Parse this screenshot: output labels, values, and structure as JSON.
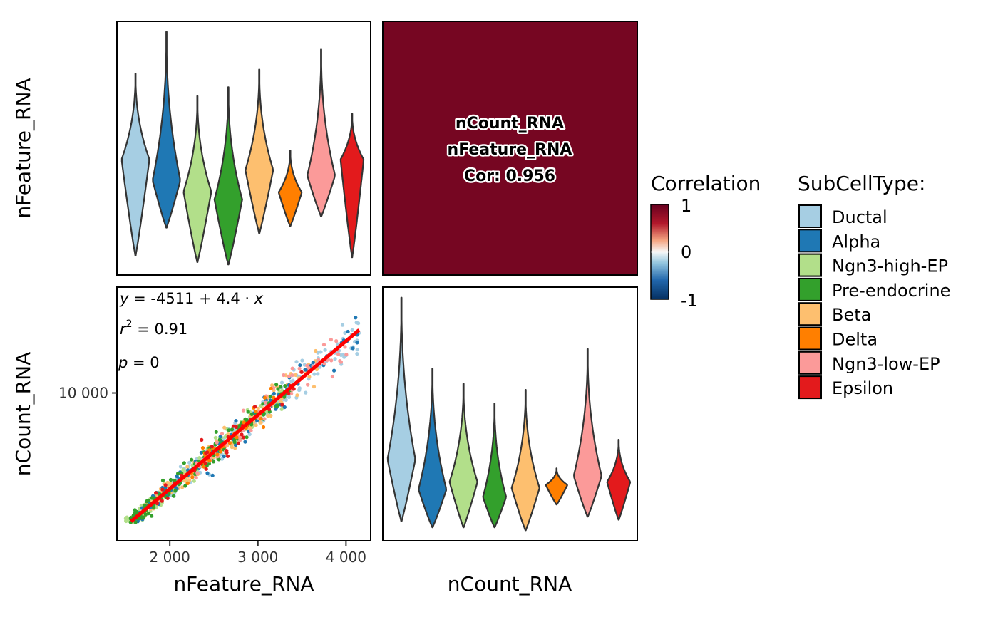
{
  "chart_data": {
    "type": "pairs-matrix",
    "variables": [
      "nFeature_RNA",
      "nCount_RNA"
    ],
    "groups": [
      "Ductal",
      "Alpha",
      "Ngn3-high-EP",
      "Pre-endocrine",
      "Beta",
      "Delta",
      "Ngn3-low-EP",
      "Epsilon"
    ],
    "colors": {
      "Ductal": "#A6CEE3",
      "Alpha": "#1F78B4",
      "Ngn3-high-EP": "#B2DF8A",
      "Pre-endocrine": "#33A02C",
      "Beta": "#FDBF6F",
      "Delta": "#FF7F00",
      "Ngn3-low-EP": "#FB9A99",
      "Epsilon": "#E31A1C"
    },
    "violin_nFeature": [
      {
        "group": "Ductal",
        "min": 1680,
        "max": 3950,
        "mode": 2880,
        "width": 0.9
      },
      {
        "group": "Alpha",
        "min": 2030,
        "max": 4470,
        "mode": 2620,
        "width": 0.9
      },
      {
        "group": "Ngn3-high-EP",
        "min": 1600,
        "max": 3670,
        "mode": 2480,
        "width": 0.9
      },
      {
        "group": "Pre-endocrine",
        "min": 1570,
        "max": 3780,
        "mode": 2380,
        "width": 0.9
      },
      {
        "group": "Beta",
        "min": 1960,
        "max": 4000,
        "mode": 2750,
        "width": 0.9
      },
      {
        "group": "Delta",
        "min": 2050,
        "max": 2990,
        "mode": 2470,
        "width": 0.75
      },
      {
        "group": "Ngn3-low-EP",
        "min": 2170,
        "max": 4250,
        "mode": 2680,
        "width": 0.9
      },
      {
        "group": "Epsilon",
        "min": 1660,
        "max": 3450,
        "mode": 2880,
        "width": 0.75
      }
    ],
    "violin_nCount": [
      {
        "group": "Ductal",
        "min": 3000,
        "max": 17800,
        "mode": 7100,
        "width": 0.9
      },
      {
        "group": "Alpha",
        "min": 2600,
        "max": 13100,
        "mode": 5100,
        "width": 0.9
      },
      {
        "group": "Ngn3-high-EP",
        "min": 2600,
        "max": 12100,
        "mode": 5600,
        "width": 0.9
      },
      {
        "group": "Pre-endocrine",
        "min": 2600,
        "max": 10800,
        "mode": 4600,
        "width": 0.75
      },
      {
        "group": "Beta",
        "min": 2400,
        "max": 11700,
        "mode": 5200,
        "width": 0.9
      },
      {
        "group": "Delta",
        "min": 4100,
        "max": 6500,
        "mode": 5400,
        "width": 0.7
      },
      {
        "group": "Ngn3-low-EP",
        "min": 3300,
        "max": 14400,
        "mode": 6000,
        "width": 0.9
      },
      {
        "group": "Epsilon",
        "min": 3100,
        "max": 8400,
        "mode": 5600,
        "width": 0.75
      }
    ],
    "scatter": {
      "xlabel": "nFeature_RNA",
      "ylabel": "nCount_RNA",
      "xticks": [
        "2 000",
        "3 000",
        "4 000"
      ],
      "xtick_values": [
        2000,
        3000,
        4000
      ],
      "yticks": [
        "10 000"
      ],
      "ytick_values": [
        10000
      ],
      "xlim": [
        1400,
        4280
      ],
      "ylim": [
        1200,
        16300
      ],
      "fit": {
        "intercept": -4511,
        "slope": 4.4,
        "r2": 0.91,
        "p": 0
      },
      "fit_range": [
        1560,
        4150
      ]
    },
    "correlation": {
      "var1": "nCount_RNA",
      "var2": "nFeature_RNA",
      "value": 0.956,
      "fill": "#760622"
    }
  },
  "text": {
    "eq_y": "y",
    "eq_rhs": " = -4511 + 4.4 · ",
    "eq_x": "x",
    "r2_r": "r",
    "r2_sup": "2",
    "r2_rhs": " = 0.91",
    "p_p": "p",
    "p_rhs": " = 0",
    "cor_label1": "nCount_RNA",
    "cor_label2": "nFeature_RNA",
    "cor_label3": "Cor: 0.956",
    "row_label_top": "nFeature_RNA",
    "row_label_bottom": "nCount_RNA",
    "col_label_left": "nFeature_RNA",
    "col_label_right": "nCount_RNA",
    "legend_title": "SubCellType:",
    "colorbar_title": "Correlation",
    "colorbar_ticks": [
      "1",
      "0",
      "-1"
    ]
  }
}
